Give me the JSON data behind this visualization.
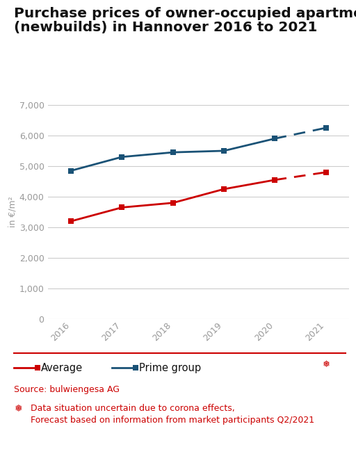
{
  "title_line1": "Purchase prices of owner-occupied apartments",
  "title_line2": "(newbuilds) in Hannover 2016 to 2021",
  "years": [
    2016,
    2017,
    2018,
    2019,
    2020,
    2021
  ],
  "average_solid": [
    3200,
    3650,
    3800,
    4250,
    4550
  ],
  "average_dashed": [
    4550,
    4800
  ],
  "prime_solid": [
    4850,
    5300,
    5450,
    5500,
    5900
  ],
  "prime_dashed": [
    5900,
    6250
  ],
  "solid_years_avg": [
    2016,
    2017,
    2018,
    2019,
    2020
  ],
  "dashed_years_avg": [
    2020,
    2021
  ],
  "solid_years_prime": [
    2016,
    2017,
    2018,
    2019,
    2020
  ],
  "dashed_years_prime": [
    2020,
    2021
  ],
  "avg_color": "#cc0000",
  "prime_color": "#1a5276",
  "ylim": [
    0,
    7000
  ],
  "yticks": [
    0,
    1000,
    2000,
    3000,
    4000,
    5000,
    6000,
    7000
  ],
  "ylabel": "in €/m²",
  "source_text": "Source: bulwiengesa AG",
  "footnote_text": "Data situation uncertain due to corona effects,\nForecast based on information from market participants Q2/2021",
  "background_color": "#ffffff",
  "grid_color": "#cccccc",
  "tick_color": "#999999",
  "title_fontsize": 14.5,
  "axis_label_fontsize": 9,
  "tick_fontsize": 9,
  "legend_fontsize": 10.5,
  "source_fontsize": 9,
  "footnote_fontsize": 9
}
